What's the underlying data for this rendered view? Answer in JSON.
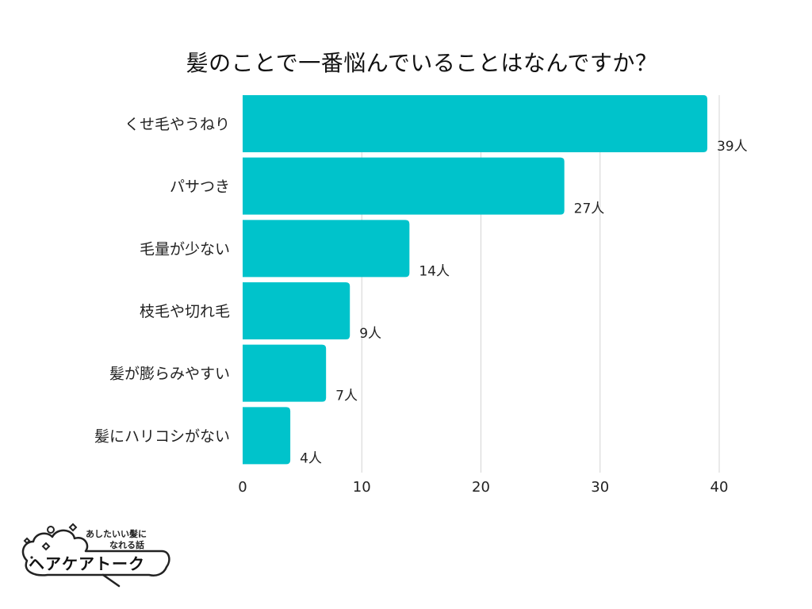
{
  "chart_data": {
    "type": "bar",
    "orientation": "horizontal",
    "title": "髪のことで一番悩んでいることはなんですか？",
    "categories": [
      "くせ毛やうねり",
      "パサつき",
      "毛量が少ない",
      "枝毛や切れ毛",
      "髪が膨らみやすい",
      "髪にハリコシがない"
    ],
    "values": [
      39,
      27,
      14,
      9,
      7,
      4
    ],
    "value_suffix": "人",
    "xlim": [
      0,
      40
    ],
    "xticks": [
      0,
      10,
      20,
      30,
      40
    ],
    "grid": true,
    "bar_color": "#00C3CB",
    "xlabel": "",
    "ylabel": ""
  },
  "logo": {
    "tagline_line1": "あしたいい髪に",
    "tagline_line2": "なれる話",
    "name": "ヘアケアトーク"
  }
}
